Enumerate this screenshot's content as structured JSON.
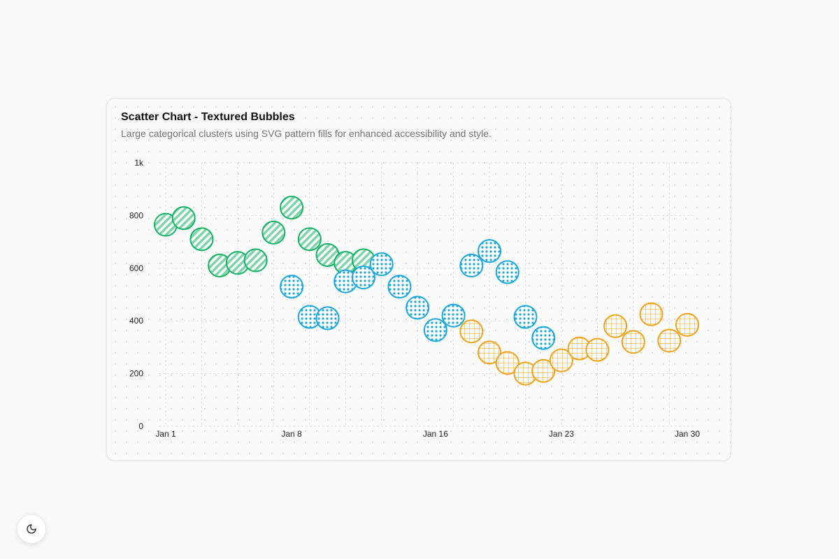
{
  "card": {
    "title": "Scatter Chart - Textured Bubbles",
    "subtitle": "Large categorical clusters using SVG pattern fills for enhanced accessibility and style."
  },
  "theme_toggle": {
    "icon": "moon-icon"
  },
  "chart_data": {
    "type": "scatter",
    "title": "Scatter Chart - Textured Bubbles",
    "subtitle": "Large categorical clusters using SVG pattern fills for enhanced accessibility and style.",
    "xlabel": "",
    "ylabel": "",
    "x_type": "date",
    "xlim": [
      "2024-01-01",
      "2024-01-30"
    ],
    "ylim": [
      0,
      1000
    ],
    "x_ticks": [
      {
        "value": "2024-01-01",
        "label": "Jan 1"
      },
      {
        "value": "2024-01-08",
        "label": "Jan 8"
      },
      {
        "value": "2024-01-16",
        "label": "Jan 16"
      },
      {
        "value": "2024-01-23",
        "label": "Jan 23"
      },
      {
        "value": "2024-01-30",
        "label": "Jan 30"
      }
    ],
    "y_ticks": [
      {
        "value": 0,
        "label": "0"
      },
      {
        "value": 200,
        "label": "200"
      },
      {
        "value": 400,
        "label": "400"
      },
      {
        "value": 600,
        "label": "600"
      },
      {
        "value": 800,
        "label": "800"
      },
      {
        "value": 1000,
        "label": "1k"
      }
    ],
    "grid": true,
    "legend": "none",
    "series": [
      {
        "color": "#16b364",
        "pattern": "diagonal-stripes",
        "points": [
          {
            "x": "2024-01-01",
            "y": 765
          },
          {
            "x": "2024-01-02",
            "y": 790
          },
          {
            "x": "2024-01-03",
            "y": 710
          },
          {
            "x": "2024-01-04",
            "y": 610
          },
          {
            "x": "2024-01-05",
            "y": 620
          },
          {
            "x": "2024-01-06",
            "y": 630
          },
          {
            "x": "2024-01-07",
            "y": 735
          },
          {
            "x": "2024-01-08",
            "y": 830
          },
          {
            "x": "2024-01-09",
            "y": 710
          },
          {
            "x": "2024-01-10",
            "y": 650
          },
          {
            "x": "2024-01-11",
            "y": 620
          },
          {
            "x": "2024-01-12",
            "y": 630
          }
        ]
      },
      {
        "color": "#1ba7dd",
        "pattern": "dots",
        "points": [
          {
            "x": "2024-01-08",
            "y": 530
          },
          {
            "x": "2024-01-09",
            "y": 415
          },
          {
            "x": "2024-01-10",
            "y": 410
          },
          {
            "x": "2024-01-11",
            "y": 550
          },
          {
            "x": "2024-01-12",
            "y": 565
          },
          {
            "x": "2024-01-13",
            "y": 615
          },
          {
            "x": "2024-01-14",
            "y": 530
          },
          {
            "x": "2024-01-15",
            "y": 450
          },
          {
            "x": "2024-01-16",
            "y": 365
          },
          {
            "x": "2024-01-17",
            "y": 420
          },
          {
            "x": "2024-01-18",
            "y": 610
          },
          {
            "x": "2024-01-19",
            "y": 665
          },
          {
            "x": "2024-01-20",
            "y": 585
          },
          {
            "x": "2024-01-21",
            "y": 415
          },
          {
            "x": "2024-01-22",
            "y": 335
          }
        ]
      },
      {
        "color": "#f0a21a",
        "pattern": "grid",
        "points": [
          {
            "x": "2024-01-18",
            "y": 360
          },
          {
            "x": "2024-01-19",
            "y": 280
          },
          {
            "x": "2024-01-20",
            "y": 240
          },
          {
            "x": "2024-01-21",
            "y": 200
          },
          {
            "x": "2024-01-22",
            "y": 210
          },
          {
            "x": "2024-01-23",
            "y": 250
          },
          {
            "x": "2024-01-24",
            "y": 295
          },
          {
            "x": "2024-01-25",
            "y": 290
          },
          {
            "x": "2024-01-26",
            "y": 380
          },
          {
            "x": "2024-01-27",
            "y": 320
          },
          {
            "x": "2024-01-28",
            "y": 425
          },
          {
            "x": "2024-01-29",
            "y": 325
          },
          {
            "x": "2024-01-30",
            "y": 385
          }
        ]
      }
    ]
  }
}
